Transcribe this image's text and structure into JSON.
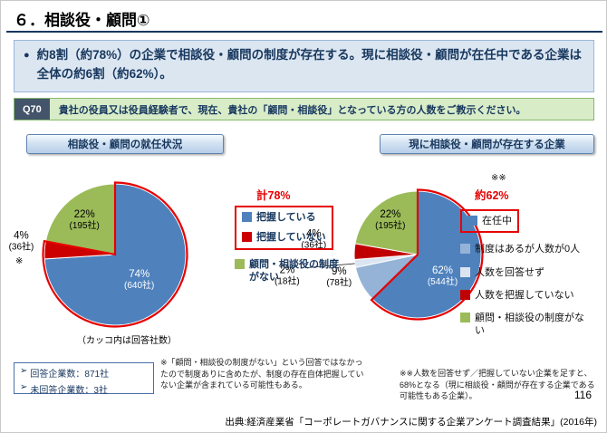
{
  "colors": {
    "navy": "#17375e",
    "highlight": "#e60000"
  },
  "page": {
    "title": "６．相談役・顧問①",
    "page_number": "116",
    "source": "出典:経済産業省「コーポレートガバナンスに関する企業アンケート調査結果」(2016年)"
  },
  "summary": {
    "bullet": "●",
    "text": "約8割（約78%）の企業で相談役・顧問の制度が存在する。現に相談役・顧問が在任中である企業は全体の約6割（約62%）。"
  },
  "question": {
    "tag": "Q70",
    "text": "貴社の役員又は役員経験者で、現在、貴社の「顧問・相談役」となっている方の人数をご教示ください。"
  },
  "notes": {
    "response_bullet": "➢",
    "response_box": [
      "回答企業数：871社",
      "未回答企業数：3社"
    ],
    "ref_mark": "※",
    "note_center": "※「顧問・相談役の制度がない」という回答ではなかったので制度ありに含めたが、制度の存在自体把握していない企業が含まれている可能性もある。",
    "note_right": "※※人数を回答せず／把握していない企業を足すと、68%となる（現に相談役・顧問が存在する企業である可能性もある企業）。"
  },
  "chart_data": [
    {
      "type": "pie",
      "title": "相談役・顧問の就任状況",
      "caption": "（カッコ内は回答社数）",
      "slices": [
        {
          "label": "把握している",
          "pct": 74,
          "count": "640社",
          "color": "#4f81bd"
        },
        {
          "label": "把握していない",
          "pct": 4,
          "count": "36社",
          "color": "#cc0000"
        },
        {
          "label": "顧問・相談役の制度がない",
          "pct": 22,
          "count": "195社",
          "color": "#9bbb59"
        }
      ],
      "highlight": {
        "label": "計78%",
        "slice_indexes": [
          0,
          1
        ]
      }
    },
    {
      "type": "pie",
      "title": "現に相談役・顧問が存在する企業",
      "slices": [
        {
          "label": "在任中",
          "pct": 62,
          "count": "544社",
          "color": "#4f81bd"
        },
        {
          "label": "制度はあるが人数が0人",
          "pct": 9,
          "count": "78社",
          "color": "#95b3d7"
        },
        {
          "label": "人数を回答せず",
          "pct": 2,
          "count": "18社",
          "color": "#dbe5f1"
        },
        {
          "label": "人数を把握していない",
          "pct": 4,
          "count": "36社",
          "color": "#c00000"
        },
        {
          "label": "顧問・相談役の制度がない",
          "pct": 22,
          "count": "195社",
          "color": "#9bbb59"
        }
      ],
      "highlight": {
        "label": "約62%",
        "slice_indexes": [
          0
        ],
        "mark": "※※"
      }
    }
  ]
}
